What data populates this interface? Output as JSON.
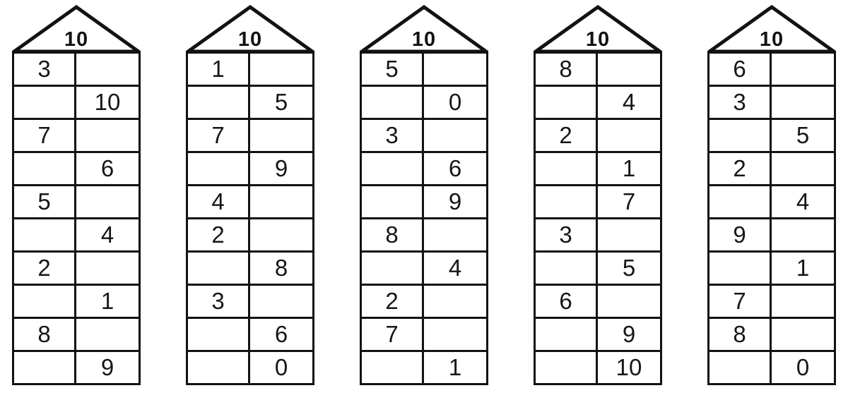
{
  "page": {
    "background_color": "#ffffff",
    "ink_color": "#121212",
    "description_label": "make-ten number houses worksheet"
  },
  "worksheet": {
    "target_number": "10",
    "houses": [
      {
        "roof": "10",
        "rows": [
          [
            "3",
            ""
          ],
          [
            "",
            "10"
          ],
          [
            "7",
            ""
          ],
          [
            "",
            "6"
          ],
          [
            "5",
            ""
          ],
          [
            "",
            "4"
          ],
          [
            "2",
            ""
          ],
          [
            "",
            "1"
          ],
          [
            "8",
            ""
          ],
          [
            "",
            "9"
          ]
        ]
      },
      {
        "roof": "10",
        "rows": [
          [
            "1",
            ""
          ],
          [
            "",
            "5"
          ],
          [
            "7",
            ""
          ],
          [
            "",
            "9"
          ],
          [
            "4",
            ""
          ],
          [
            "2",
            ""
          ],
          [
            "",
            "8"
          ],
          [
            "3",
            ""
          ],
          [
            "",
            "6"
          ],
          [
            "",
            "0"
          ]
        ]
      },
      {
        "roof": "10",
        "rows": [
          [
            "5",
            ""
          ],
          [
            "",
            "0"
          ],
          [
            "3",
            ""
          ],
          [
            "",
            "6"
          ],
          [
            "",
            "9"
          ],
          [
            "8",
            ""
          ],
          [
            "",
            "4"
          ],
          [
            "2",
            ""
          ],
          [
            "7",
            ""
          ],
          [
            "",
            "1"
          ]
        ]
      },
      {
        "roof": "10",
        "rows": [
          [
            "8",
            ""
          ],
          [
            "",
            "4"
          ],
          [
            "2",
            ""
          ],
          [
            "",
            "1"
          ],
          [
            "",
            "7"
          ],
          [
            "3",
            ""
          ],
          [
            "",
            "5"
          ],
          [
            "6",
            ""
          ],
          [
            "",
            "9"
          ],
          [
            "",
            "10"
          ]
        ]
      },
      {
        "roof": "10",
        "rows": [
          [
            "6",
            ""
          ],
          [
            "3",
            ""
          ],
          [
            "",
            "5"
          ],
          [
            "2",
            ""
          ],
          [
            "",
            "4"
          ],
          [
            "9",
            ""
          ],
          [
            "",
            "1"
          ],
          [
            "7",
            ""
          ],
          [
            "8",
            ""
          ],
          [
            "",
            "0"
          ]
        ]
      }
    ]
  }
}
